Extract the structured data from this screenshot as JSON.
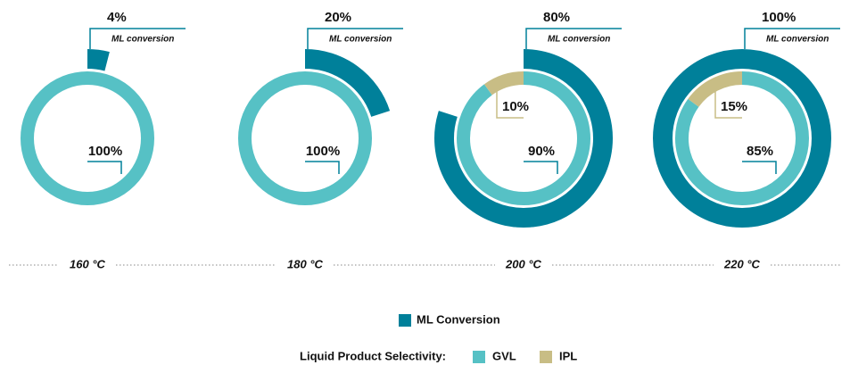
{
  "chart_data": [
    {
      "type": "donut",
      "title": "160 °C",
      "conversion": {
        "name": "ML conversion",
        "value": 4,
        "value_label": "4%",
        "color": "#00809a"
      },
      "selectivity": {
        "categories": [
          "GVL"
        ],
        "values": [
          100
        ],
        "value_labels": [
          "100%"
        ],
        "colors": [
          "#56c1c5"
        ]
      }
    },
    {
      "type": "donut",
      "title": "180 °C",
      "conversion": {
        "name": "ML conversion",
        "value": 20,
        "value_label": "20%",
        "color": "#00809a"
      },
      "selectivity": {
        "categories": [
          "GVL"
        ],
        "values": [
          100
        ],
        "value_labels": [
          "100%"
        ],
        "colors": [
          "#56c1c5"
        ]
      }
    },
    {
      "type": "donut",
      "title": "200 °C",
      "conversion": {
        "name": "ML conversion",
        "value": 80,
        "value_label": "80%",
        "color": "#00809a"
      },
      "selectivity": {
        "categories": [
          "GVL",
          "IPL"
        ],
        "values": [
          90,
          10
        ],
        "value_labels": [
          "90%",
          "10%"
        ],
        "colors": [
          "#56c1c5",
          "#c8bd85"
        ]
      }
    },
    {
      "type": "donut",
      "title": "220 °C",
      "conversion": {
        "name": "ML conversion",
        "value": 100,
        "value_label": "100%",
        "color": "#00809a"
      },
      "selectivity": {
        "categories": [
          "GVL",
          "IPL"
        ],
        "values": [
          85,
          15
        ],
        "value_labels": [
          "85%",
          "15%"
        ],
        "colors": [
          "#56c1c5",
          "#c8bd85"
        ]
      }
    }
  ],
  "legend": {
    "conversion": "ML Conversion",
    "conversion_color": "#00809a",
    "selectivity_title": "Liquid Product Selectivity:",
    "items": [
      "GVL",
      "IPL"
    ],
    "item_colors": [
      "#56c1c5",
      "#c8bd85"
    ]
  }
}
